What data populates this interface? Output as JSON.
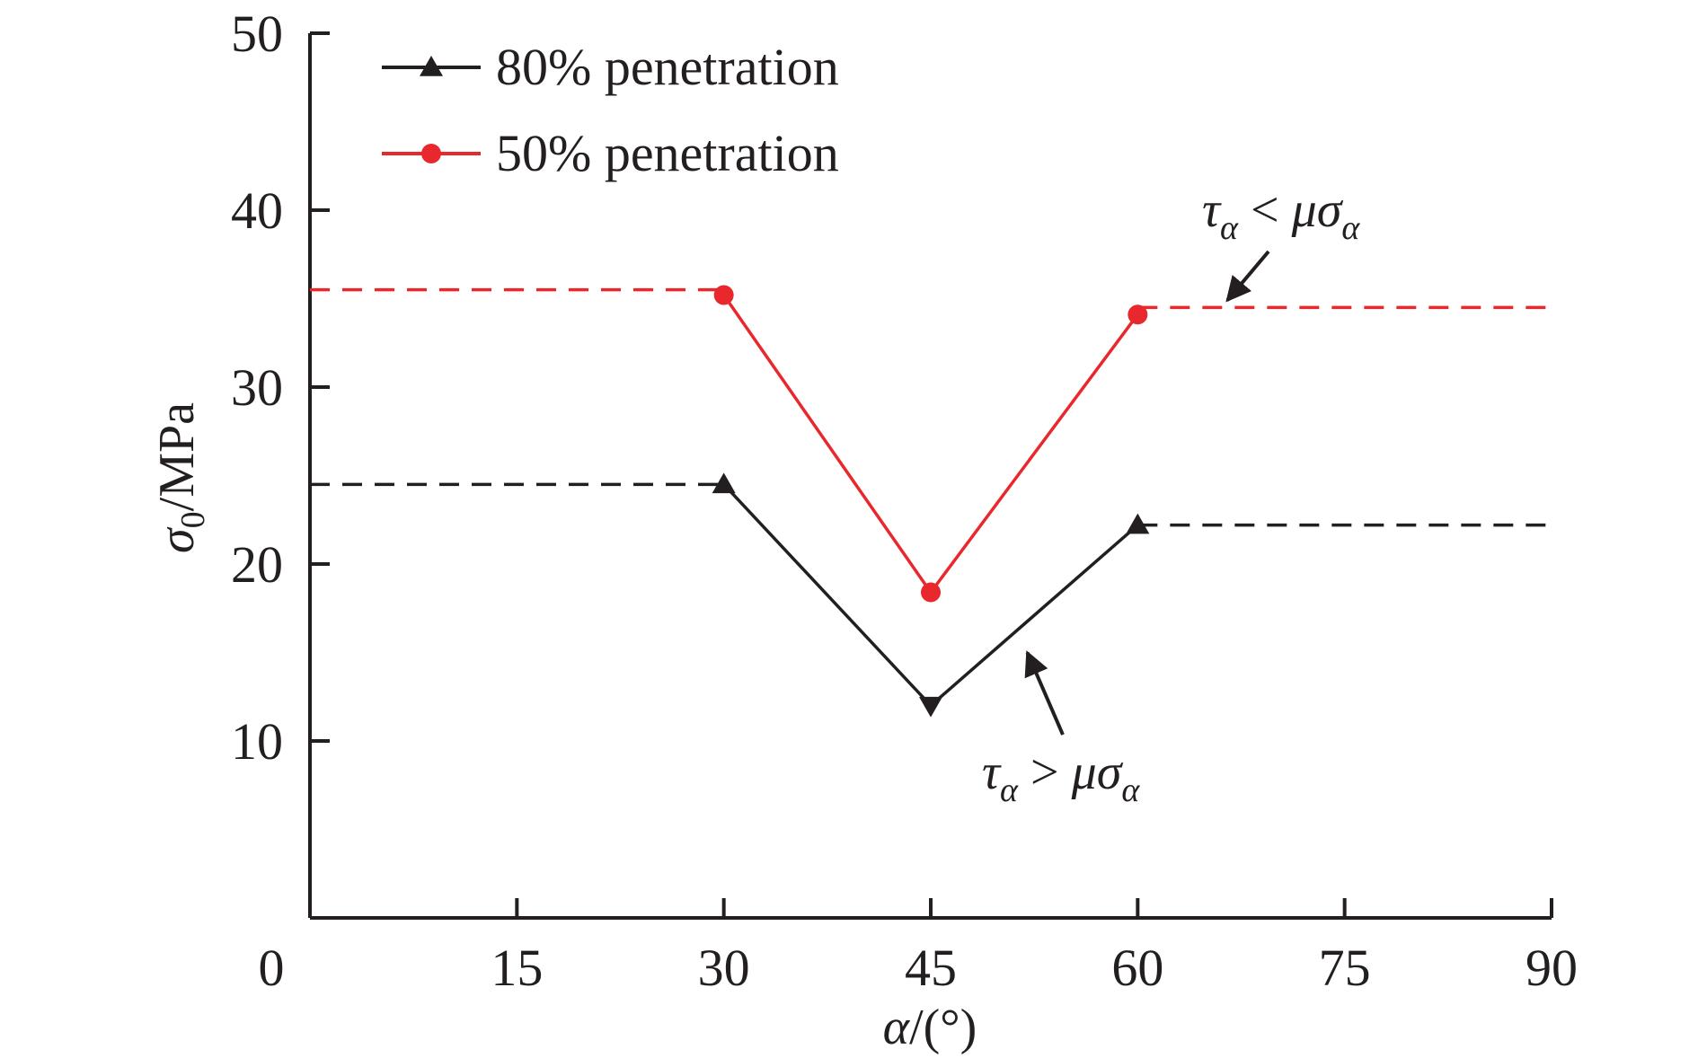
{
  "chart_data": {
    "type": "line",
    "xlabel": "α/(°)",
    "ylabel": "σ0/MPa",
    "xlim": [
      0,
      90
    ],
    "ylim": [
      0,
      50
    ],
    "x_ticks": [
      0,
      15,
      30,
      45,
      60,
      75,
      90
    ],
    "y_ticks": [
      10,
      20,
      30,
      40,
      50
    ],
    "grid": false,
    "legend_position": "top-left",
    "series": [
      {
        "name": "80% penetration",
        "color": "#231f20",
        "marker": "triangle",
        "x": [
          30,
          45,
          60
        ],
        "y": [
          24.5,
          12.0,
          22.2
        ],
        "dashed_extensions": [
          {
            "x": [
              0,
              30
            ],
            "y": [
              24.5,
              24.5
            ]
          },
          {
            "x": [
              60,
              90
            ],
            "y": [
              22.2,
              22.2
            ]
          }
        ]
      },
      {
        "name": "50% penetration",
        "color": "#e8282c",
        "marker": "circle",
        "x": [
          30,
          45,
          60
        ],
        "y": [
          35.2,
          18.4,
          34.1
        ],
        "dashed_extensions": [
          {
            "x": [
              0,
              30
            ],
            "y": [
              35.5,
              35.5
            ]
          },
          {
            "x": [
              60,
              90
            ],
            "y": [
              34.5,
              34.5
            ]
          }
        ]
      }
    ],
    "annotations": [
      {
        "id": "upper",
        "tau": "τ",
        "sub": "α",
        "op": "<",
        "mu": "μσ",
        "sub2": "α",
        "arrow_to": [
          66.5,
          34.5
        ]
      },
      {
        "id": "lower",
        "tau": "τ",
        "sub": "α",
        "op": ">",
        "mu": "μσ",
        "sub2": "α",
        "arrow_to": [
          52,
          15.5
        ]
      }
    ]
  }
}
